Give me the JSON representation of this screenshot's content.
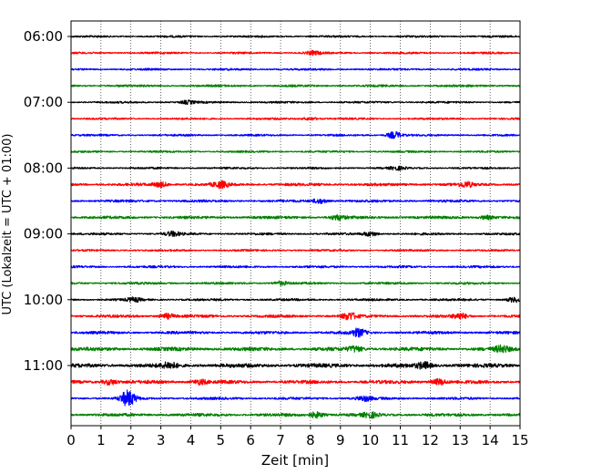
{
  "chart_data": {
    "type": "line",
    "title": "",
    "xlabel": "Zeit  [min]",
    "ylabel": "UTC (Lokalzeit = UTC + 01:00)",
    "xlim": [
      0,
      15
    ],
    "x_ticks": [
      "0",
      "1",
      "2",
      "3",
      "4",
      "5",
      "6",
      "7",
      "8",
      "9",
      "10",
      "11",
      "12",
      "13",
      "14",
      "15"
    ],
    "y_ticks": [
      "06:00",
      "07:00",
      "08:00",
      "09:00",
      "10:00",
      "11:00"
    ],
    "row_start": "06:00",
    "row_interval_min": 15,
    "row_count": 24,
    "grid_x": "dotted vertical at each minute",
    "color_cycle": [
      "#000000",
      "#ff0000",
      "#0000ff",
      "#008000"
    ],
    "traces": [
      {
        "row": 0,
        "time": "06:00",
        "color": "#000000",
        "amplitude": 0.7,
        "events": []
      },
      {
        "row": 1,
        "time": "06:15",
        "color": "#ff0000",
        "amplitude": 0.7,
        "events": [
          {
            "min": 8.1,
            "amp": 1.2
          }
        ]
      },
      {
        "row": 2,
        "time": "06:30",
        "color": "#0000ff",
        "amplitude": 0.7,
        "events": []
      },
      {
        "row": 3,
        "time": "06:45",
        "color": "#008000",
        "amplitude": 0.8,
        "events": []
      },
      {
        "row": 4,
        "time": "07:00",
        "color": "#000000",
        "amplitude": 0.7,
        "events": [
          {
            "min": 3.9,
            "amp": 1.0
          }
        ]
      },
      {
        "row": 5,
        "time": "07:15",
        "color": "#ff0000",
        "amplitude": 0.7,
        "events": [
          {
            "min": 8.0,
            "amp": 0.9
          }
        ]
      },
      {
        "row": 6,
        "time": "07:30",
        "color": "#0000ff",
        "amplitude": 0.7,
        "events": [
          {
            "min": 10.8,
            "amp": 2.2
          }
        ]
      },
      {
        "row": 7,
        "time": "07:45",
        "color": "#008000",
        "amplitude": 0.7,
        "events": []
      },
      {
        "row": 8,
        "time": "08:00",
        "color": "#000000",
        "amplitude": 0.7,
        "events": [
          {
            "min": 10.9,
            "amp": 1.0
          }
        ]
      },
      {
        "row": 9,
        "time": "08:15",
        "color": "#ff0000",
        "amplitude": 1.0,
        "events": [
          {
            "min": 3.0,
            "amp": 1.5
          },
          {
            "min": 5.0,
            "amp": 2.0
          },
          {
            "min": 13.2,
            "amp": 1.5
          }
        ]
      },
      {
        "row": 10,
        "time": "08:30",
        "color": "#0000ff",
        "amplitude": 0.9,
        "events": [
          {
            "min": 8.3,
            "amp": 1.5
          }
        ]
      },
      {
        "row": 11,
        "time": "08:45",
        "color": "#008000",
        "amplitude": 1.0,
        "events": [
          {
            "min": 8.9,
            "amp": 1.5
          },
          {
            "min": 13.9,
            "amp": 1.2
          }
        ]
      },
      {
        "row": 12,
        "time": "09:00",
        "color": "#000000",
        "amplitude": 0.8,
        "events": [
          {
            "min": 3.4,
            "amp": 1.4
          },
          {
            "min": 10.0,
            "amp": 1.4
          }
        ]
      },
      {
        "row": 13,
        "time": "09:15",
        "color": "#ff0000",
        "amplitude": 0.7,
        "events": []
      },
      {
        "row": 14,
        "time": "09:30",
        "color": "#0000ff",
        "amplitude": 0.8,
        "events": []
      },
      {
        "row": 15,
        "time": "09:45",
        "color": "#008000",
        "amplitude": 0.8,
        "events": [
          {
            "min": 7.0,
            "amp": 1.2
          }
        ]
      },
      {
        "row": 16,
        "time": "10:00",
        "color": "#000000",
        "amplitude": 0.8,
        "events": [
          {
            "min": 2.1,
            "amp": 1.2
          },
          {
            "min": 14.8,
            "amp": 1.5
          }
        ]
      },
      {
        "row": 17,
        "time": "10:15",
        "color": "#ff0000",
        "amplitude": 1.0,
        "events": [
          {
            "min": 3.2,
            "amp": 1.6
          },
          {
            "min": 9.3,
            "amp": 2.2
          },
          {
            "min": 13.0,
            "amp": 1.8
          }
        ]
      },
      {
        "row": 18,
        "time": "10:30",
        "color": "#0000ff",
        "amplitude": 1.0,
        "events": [
          {
            "min": 9.6,
            "amp": 2.4
          }
        ]
      },
      {
        "row": 19,
        "time": "10:45",
        "color": "#008000",
        "amplitude": 1.3,
        "events": [
          {
            "min": 9.5,
            "amp": 1.6
          },
          {
            "min": 14.4,
            "amp": 1.8
          }
        ]
      },
      {
        "row": 20,
        "time": "11:00",
        "color": "#000000",
        "amplitude": 1.4,
        "events": [
          {
            "min": 3.3,
            "amp": 1.8
          },
          {
            "min": 11.8,
            "amp": 2.0
          }
        ]
      },
      {
        "row": 21,
        "time": "11:15",
        "color": "#ff0000",
        "amplitude": 1.2,
        "events": [
          {
            "min": 1.3,
            "amp": 1.6
          },
          {
            "min": 4.3,
            "amp": 1.5
          },
          {
            "min": 12.3,
            "amp": 1.8
          }
        ]
      },
      {
        "row": 22,
        "time": "11:30",
        "color": "#0000ff",
        "amplitude": 0.9,
        "events": [
          {
            "min": 1.9,
            "amp": 5.0
          },
          {
            "min": 9.8,
            "amp": 1.5
          }
        ]
      },
      {
        "row": 23,
        "time": "11:45",
        "color": "#008000",
        "amplitude": 1.1,
        "events": [
          {
            "min": 8.2,
            "amp": 1.8
          },
          {
            "min": 10.0,
            "amp": 1.5
          }
        ]
      }
    ]
  }
}
